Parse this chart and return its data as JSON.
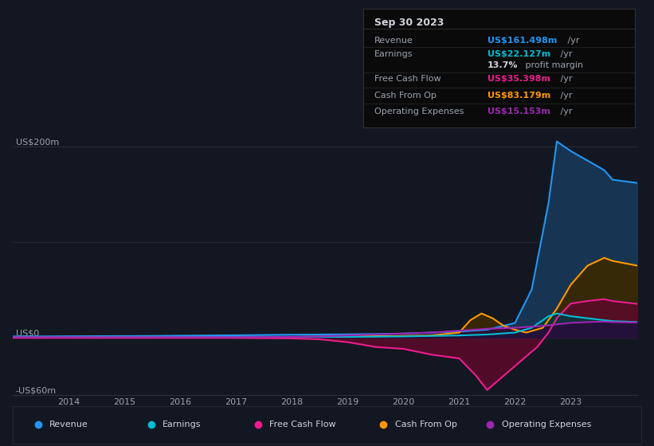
{
  "bg_color": "#131722",
  "chart_bg": "#131722",
  "grid_color": "#2a2e39",
  "text_color": "#9ba3af",
  "title_color": "#d1d4dc",
  "ylim": [
    -60,
    220
  ],
  "xlim": [
    2013.0,
    2024.2
  ],
  "xticks": [
    2014,
    2015,
    2016,
    2017,
    2018,
    2019,
    2020,
    2021,
    2022,
    2023
  ],
  "ylabel_200": "US$200m",
  "ylabel_0": "US$0",
  "ylabel_neg60": "-US$60m",
  "series": {
    "revenue": {
      "color": "#2196f3",
      "fill_color": "#1a3a5c",
      "label": "Revenue",
      "x": [
        2013.0,
        2013.5,
        2014.0,
        2014.5,
        2015.0,
        2015.5,
        2016.0,
        2016.5,
        2017.0,
        2017.5,
        2018.0,
        2018.5,
        2019.0,
        2019.5,
        2020.0,
        2020.5,
        2021.0,
        2021.5,
        2022.0,
        2022.3,
        2022.6,
        2022.75,
        2023.0,
        2023.3,
        2023.6,
        2023.75,
        2024.2
      ],
      "y": [
        1,
        1,
        1.2,
        1.3,
        1.4,
        1.5,
        1.8,
        2.0,
        2.2,
        2.5,
        2.8,
        3.0,
        3.2,
        3.5,
        4.0,
        5.0,
        6.0,
        8.0,
        15.0,
        50.0,
        140.0,
        205.0,
        195.0,
        185.0,
        175.0,
        165.0,
        161.5
      ]
    },
    "earnings": {
      "color": "#00bcd4",
      "fill_color": "#003a42",
      "label": "Earnings",
      "x": [
        2013.0,
        2014.0,
        2015.0,
        2016.0,
        2017.0,
        2018.0,
        2019.0,
        2020.0,
        2021.0,
        2021.5,
        2022.0,
        2022.3,
        2022.6,
        2022.75,
        2023.0,
        2023.3,
        2023.6,
        2023.75,
        2024.2
      ],
      "y": [
        0.5,
        0.5,
        0.5,
        0.5,
        0.5,
        0.5,
        0.5,
        1.0,
        2.0,
        3.0,
        5.0,
        10.0,
        22.0,
        25.0,
        22.127,
        20.0,
        18.0,
        17.0,
        16.0
      ]
    },
    "free_cash_flow": {
      "color": "#e91e8c",
      "fill_color": "#5c0a2a",
      "label": "Free Cash Flow",
      "x": [
        2013.0,
        2014.0,
        2015.0,
        2016.0,
        2017.0,
        2018.0,
        2018.5,
        2019.0,
        2019.5,
        2020.0,
        2020.5,
        2021.0,
        2021.3,
        2021.5,
        2021.7,
        2022.0,
        2022.2,
        2022.4,
        2022.6,
        2022.75,
        2023.0,
        2023.3,
        2023.6,
        2023.75,
        2024.2
      ],
      "y": [
        -0.5,
        -0.5,
        -0.5,
        -0.5,
        -0.5,
        -1.0,
        -2.0,
        -5.0,
        -10.0,
        -12.0,
        -18.0,
        -22.0,
        -40.0,
        -55.0,
        -45.0,
        -30.0,
        -20.0,
        -10.0,
        5.0,
        20.0,
        35.398,
        38.0,
        40.0,
        38.0,
        35.0
      ]
    },
    "cash_from_op": {
      "color": "#ff9800",
      "fill_color": "#3a2800",
      "label": "Cash From Op",
      "x": [
        2013.0,
        2014.0,
        2015.0,
        2016.0,
        2017.0,
        2018.0,
        2019.0,
        2020.0,
        2020.5,
        2021.0,
        2021.2,
        2021.4,
        2021.6,
        2021.8,
        2022.0,
        2022.2,
        2022.5,
        2022.75,
        2023.0,
        2023.3,
        2023.6,
        2023.75,
        2024.2
      ],
      "y": [
        0.5,
        0.5,
        0.5,
        0.5,
        0.5,
        0.5,
        1.0,
        1.5,
        2.0,
        5.0,
        18.0,
        25.0,
        20.0,
        12.0,
        8.0,
        5.0,
        10.0,
        30.0,
        55.0,
        75.0,
        83.179,
        80.0,
        75.0
      ]
    },
    "operating_expenses": {
      "color": "#9c27b0",
      "fill_color": "#2a0a3a",
      "label": "Operating Expenses",
      "x": [
        2013.0,
        2014.0,
        2015.0,
        2016.0,
        2017.0,
        2018.0,
        2018.5,
        2019.0,
        2019.5,
        2020.0,
        2020.5,
        2021.0,
        2021.5,
        2022.0,
        2022.5,
        2023.0,
        2023.3,
        2023.6,
        2023.75,
        2024.2
      ],
      "y": [
        0.3,
        0.3,
        0.3,
        0.3,
        0.3,
        0.5,
        1.0,
        2.0,
        3.0,
        4.0,
        5.0,
        7.0,
        9.0,
        10.0,
        12.0,
        15.153,
        16.0,
        16.5,
        16.0,
        15.5
      ]
    }
  },
  "info_box": {
    "date": "Sep 30 2023",
    "rows": [
      {
        "label": "Revenue",
        "value": "US$161.498m",
        "value_color": "#2196f3",
        "suffix": " /yr",
        "sep_below": true
      },
      {
        "label": "Earnings",
        "value": "US$22.127m",
        "value_color": "#00bcd4",
        "suffix": " /yr",
        "sep_below": false
      },
      {
        "label": "",
        "value": "13.7%",
        "value_color": "#d1d4dc",
        "suffix": " profit margin",
        "sep_below": true
      },
      {
        "label": "Free Cash Flow",
        "value": "US$35.398m",
        "value_color": "#e91e8c",
        "suffix": " /yr",
        "sep_below": true
      },
      {
        "label": "Cash From Op",
        "value": "US$83.179m",
        "value_color": "#ff9800",
        "suffix": " /yr",
        "sep_below": true
      },
      {
        "label": "Operating Expenses",
        "value": "US$15.153m",
        "value_color": "#9c27b0",
        "suffix": " /yr",
        "sep_below": false
      }
    ]
  },
  "legend": [
    {
      "label": "Revenue",
      "color": "#2196f3"
    },
    {
      "label": "Earnings",
      "color": "#00bcd4"
    },
    {
      "label": "Free Cash Flow",
      "color": "#e91e8c"
    },
    {
      "label": "Cash From Op",
      "color": "#ff9800"
    },
    {
      "label": "Operating Expenses",
      "color": "#9c27b0"
    }
  ]
}
